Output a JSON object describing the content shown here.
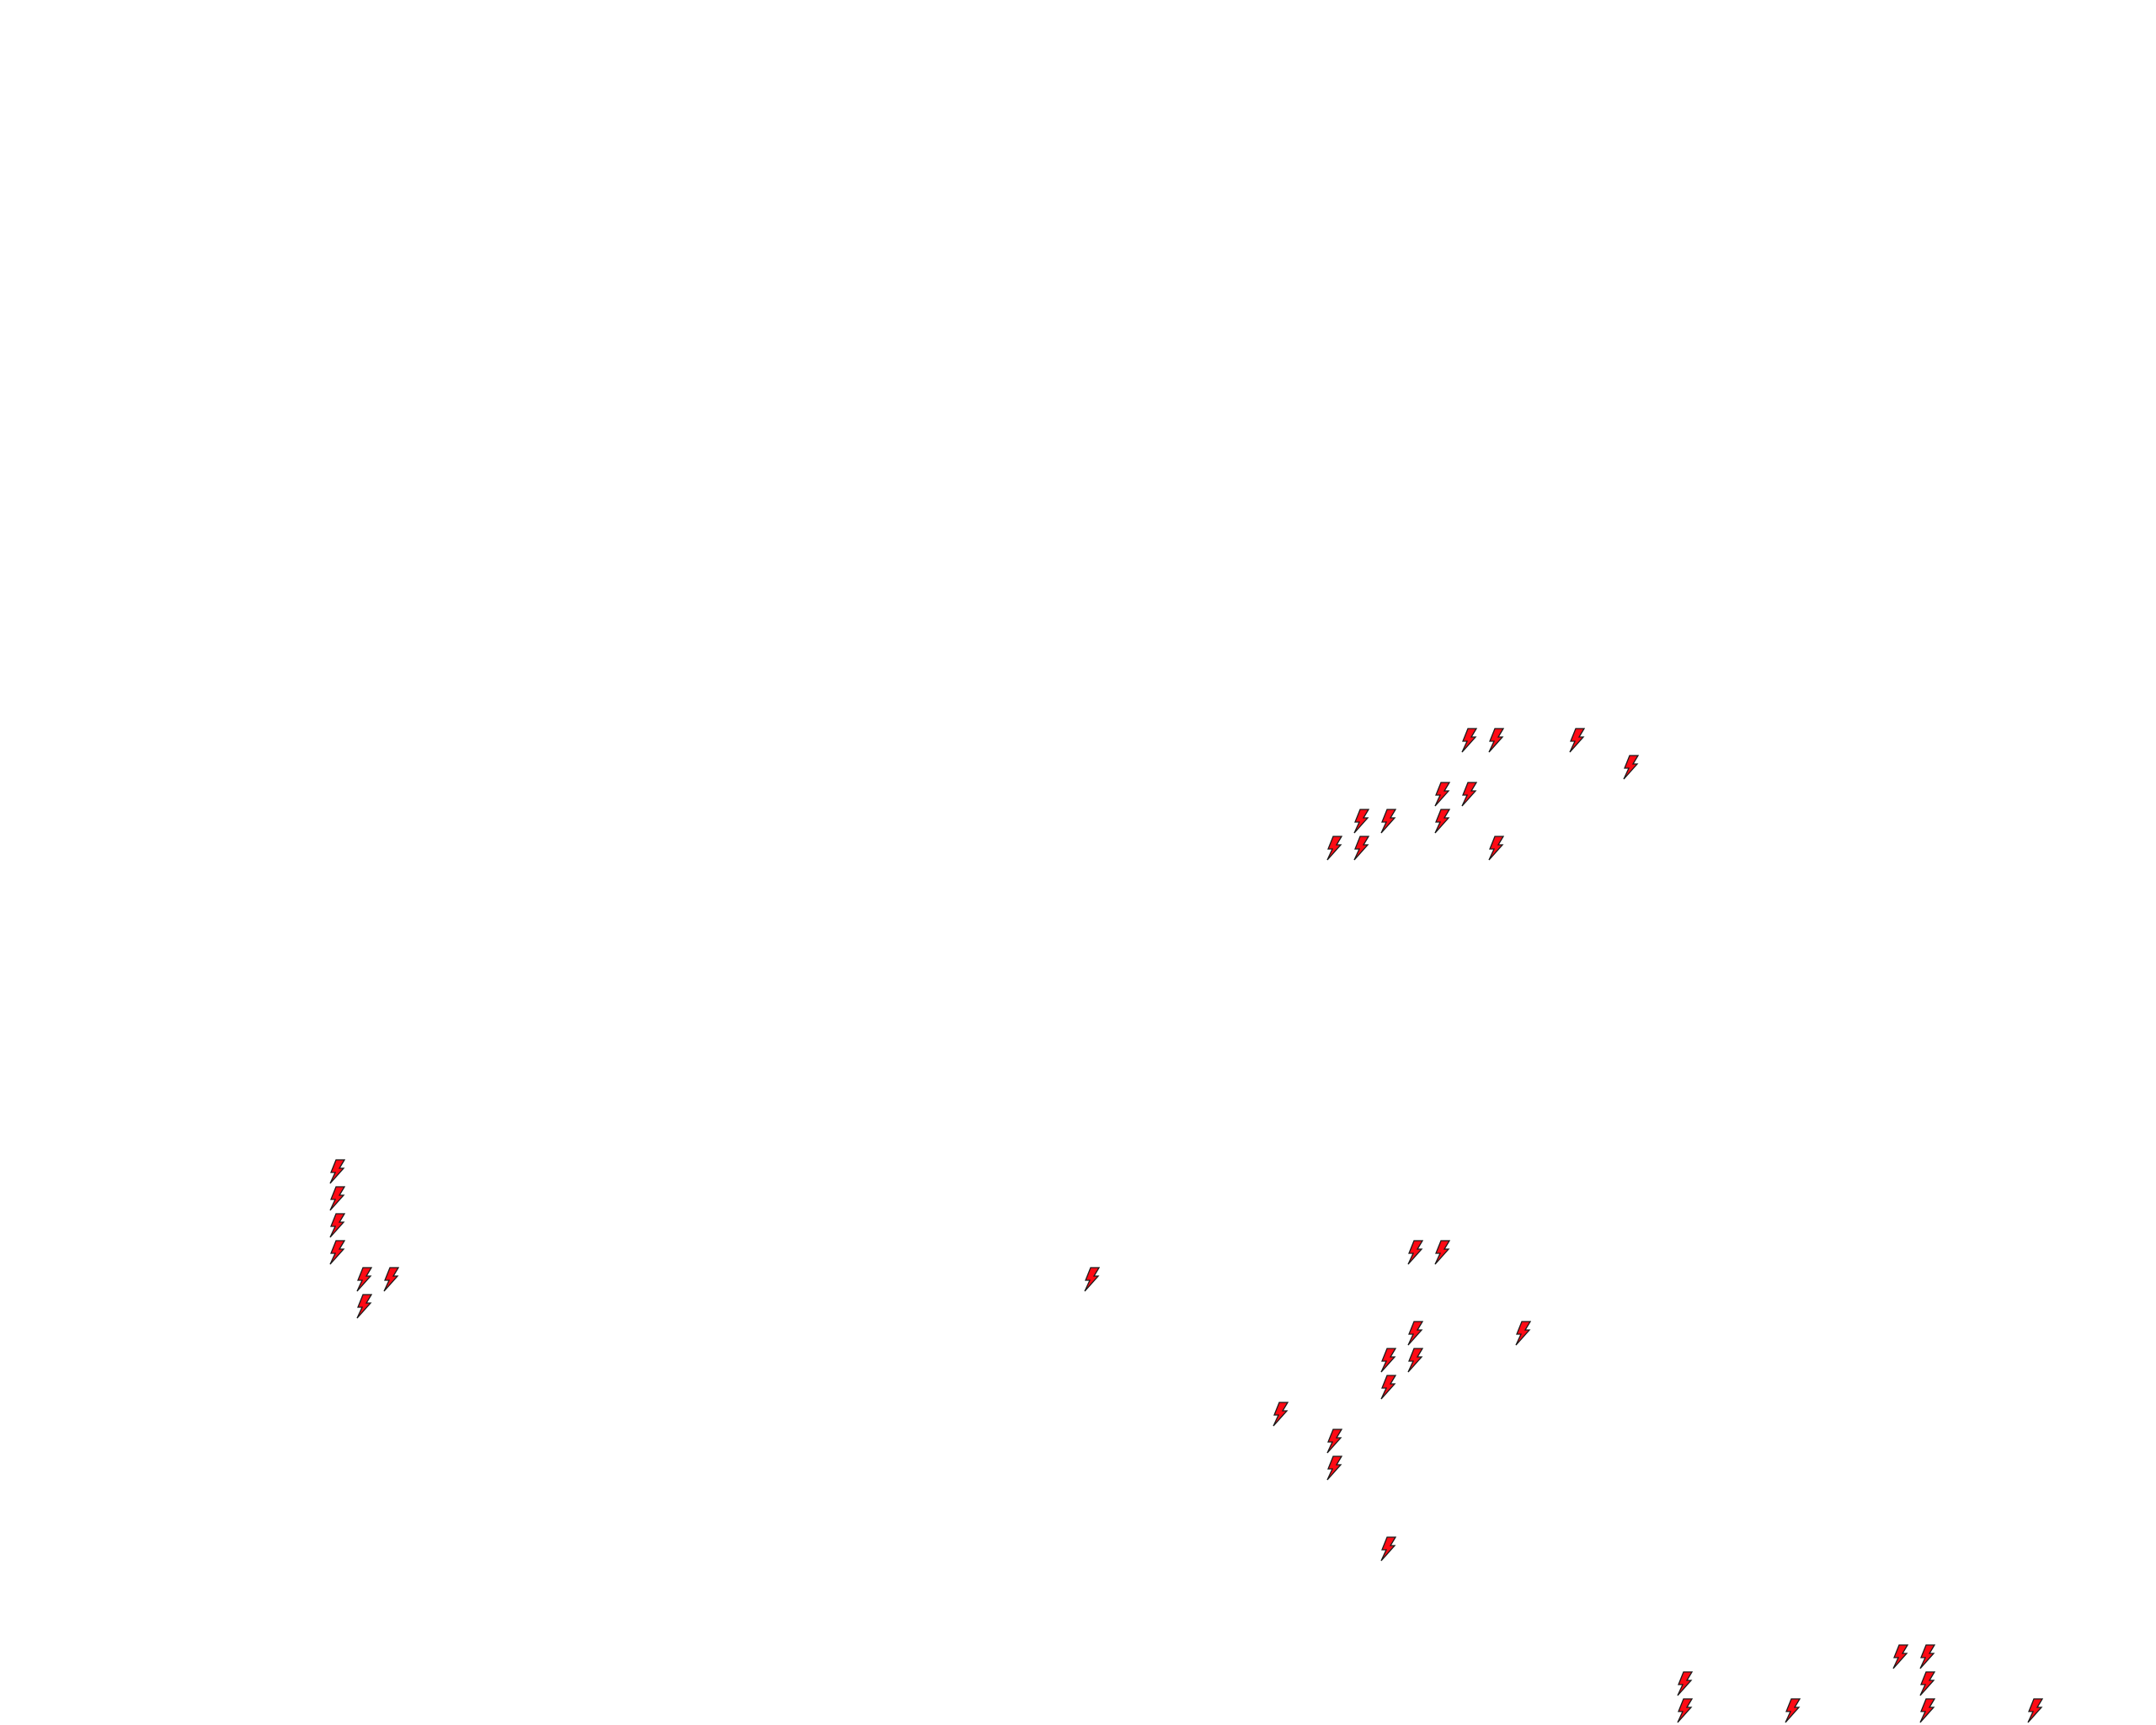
{
  "map": {
    "background_color": "#ffffff",
    "marker_icon": "lightning-bolt-icon",
    "marker_fill_color": "#ff0a14",
    "marker_stroke_color": "#1a1a1a"
  }
}
